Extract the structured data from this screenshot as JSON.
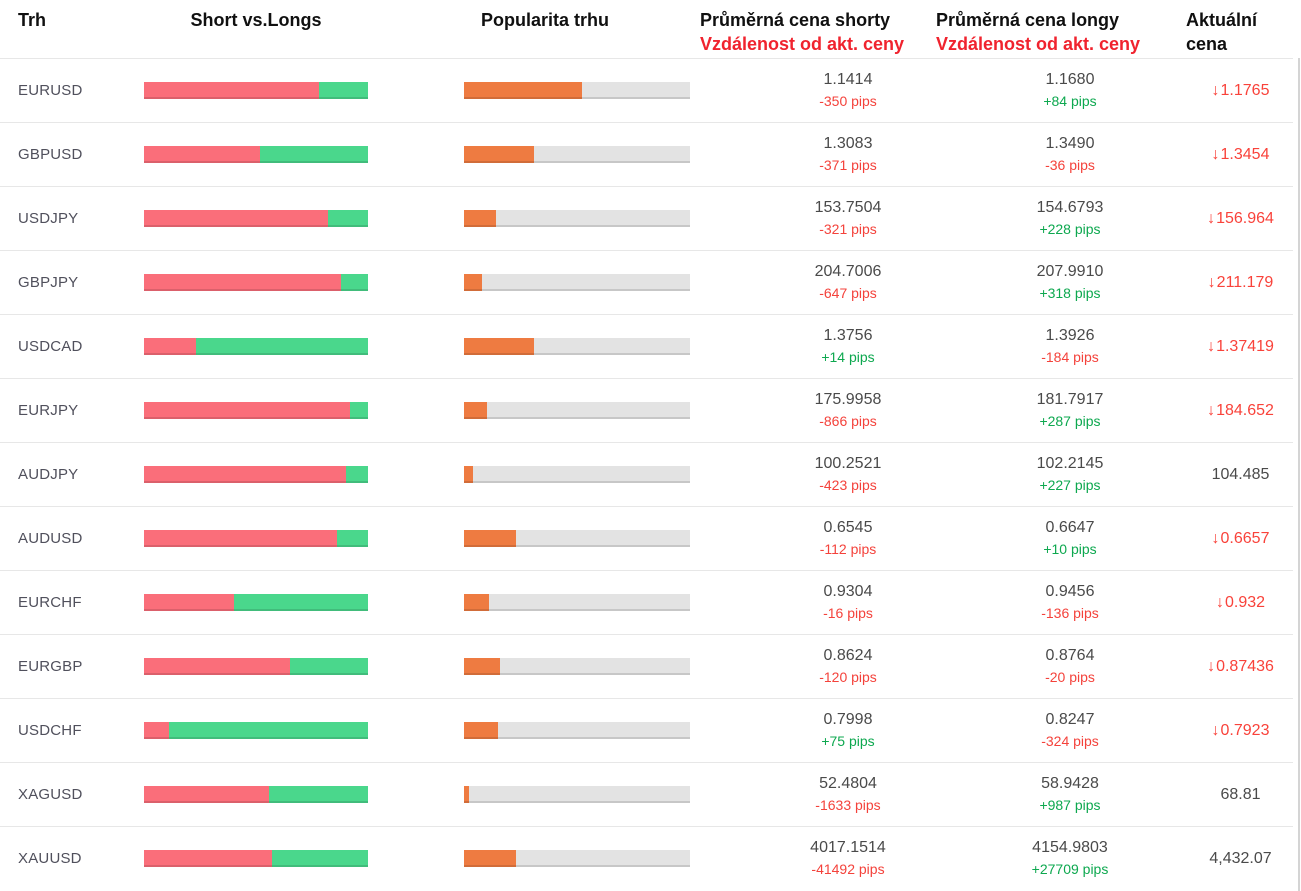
{
  "header": {
    "col_market": "Trh",
    "col_short_vs_longs": "Short vs.Longs",
    "col_popularity": "Popularita trhu",
    "col_short_line1": "Průměrná cena shorty",
    "col_short_line2": "Vzdálenost od akt. ceny",
    "col_long_line1": "Průměrná cena longy",
    "col_long_line2": "Vzdálenost od akt. ceny",
    "col_current_line1": "Aktuální",
    "col_current_line2": "cena"
  },
  "icons": {
    "down_arrow": "↓"
  },
  "colors": {
    "short_bar": "#fa6e7a",
    "long_bar": "#4ad78c",
    "popularity_bar": "#ee7b41",
    "popularity_track": "#e3e3e3",
    "pips_negative": "#f4423b",
    "pips_positive": "#0da84f",
    "header_red": "#f0232e",
    "price_down_red": "#f9423a",
    "price_neutral": "#4a4a4a"
  },
  "rows": [
    {
      "pair": "EURUSD",
      "short_pct": 78,
      "popularity_pct": 52,
      "short_price": "1.1414",
      "short_pips": "-350 pips",
      "short_tone": "neg",
      "long_price": "1.1680",
      "long_pips": "+84 pips",
      "long_tone": "pos",
      "current_price": "1.1765",
      "current_down": true
    },
    {
      "pair": "GBPUSD",
      "short_pct": 52,
      "popularity_pct": 31,
      "short_price": "1.3083",
      "short_pips": "-371 pips",
      "short_tone": "neg",
      "long_price": "1.3490",
      "long_pips": "-36 pips",
      "long_tone": "neg",
      "current_price": "1.3454",
      "current_down": true
    },
    {
      "pair": "USDJPY",
      "short_pct": 82,
      "popularity_pct": 14,
      "short_price": "153.7504",
      "short_pips": "-321 pips",
      "short_tone": "neg",
      "long_price": "154.6793",
      "long_pips": "+228 pips",
      "long_tone": "pos",
      "current_price": "156.964",
      "current_down": true
    },
    {
      "pair": "GBPJPY",
      "short_pct": 88,
      "popularity_pct": 8,
      "short_price": "204.7006",
      "short_pips": "-647 pips",
      "short_tone": "neg",
      "long_price": "207.9910",
      "long_pips": "+318 pips",
      "long_tone": "pos",
      "current_price": "211.179",
      "current_down": true
    },
    {
      "pair": "USDCAD",
      "short_pct": 23,
      "popularity_pct": 31,
      "short_price": "1.3756",
      "short_pips": "+14 pips",
      "short_tone": "pos",
      "long_price": "1.3926",
      "long_pips": "-184 pips",
      "long_tone": "neg",
      "current_price": "1.37419",
      "current_down": true
    },
    {
      "pair": "EURJPY",
      "short_pct": 92,
      "popularity_pct": 10,
      "short_price": "175.9958",
      "short_pips": "-866 pips",
      "short_tone": "neg",
      "long_price": "181.7917",
      "long_pips": "+287 pips",
      "long_tone": "pos",
      "current_price": "184.652",
      "current_down": true
    },
    {
      "pair": "AUDJPY",
      "short_pct": 90,
      "popularity_pct": 4,
      "short_price": "100.2521",
      "short_pips": "-423 pips",
      "short_tone": "neg",
      "long_price": "102.2145",
      "long_pips": "+227 pips",
      "long_tone": "pos",
      "current_price": "104.485",
      "current_down": false
    },
    {
      "pair": "AUDUSD",
      "short_pct": 86,
      "popularity_pct": 23,
      "short_price": "0.6545",
      "short_pips": "-112 pips",
      "short_tone": "neg",
      "long_price": "0.6647",
      "long_pips": "+10 pips",
      "long_tone": "pos",
      "current_price": "0.6657",
      "current_down": true
    },
    {
      "pair": "EURCHF",
      "short_pct": 40,
      "popularity_pct": 11,
      "short_price": "0.9304",
      "short_pips": "-16 pips",
      "short_tone": "neg",
      "long_price": "0.9456",
      "long_pips": "-136 pips",
      "long_tone": "neg",
      "current_price": "0.932",
      "current_down": true
    },
    {
      "pair": "EURGBP",
      "short_pct": 65,
      "popularity_pct": 16,
      "short_price": "0.8624",
      "short_pips": "-120 pips",
      "short_tone": "neg",
      "long_price": "0.8764",
      "long_pips": "-20 pips",
      "long_tone": "neg",
      "current_price": "0.87436",
      "current_down": true
    },
    {
      "pair": "USDCHF",
      "short_pct": 11,
      "popularity_pct": 15,
      "short_price": "0.7998",
      "short_pips": "+75 pips",
      "short_tone": "pos",
      "long_price": "0.8247",
      "long_pips": "-324 pips",
      "long_tone": "neg",
      "current_price": "0.7923",
      "current_down": true
    },
    {
      "pair": "XAGUSD",
      "short_pct": 56,
      "popularity_pct": 2,
      "short_price": "52.4804",
      "short_pips": "-1633 pips",
      "short_tone": "neg",
      "long_price": "58.9428",
      "long_pips": "+987 pips",
      "long_tone": "pos",
      "current_price": "68.81",
      "current_down": false
    },
    {
      "pair": "XAUUSD",
      "short_pct": 57,
      "popularity_pct": 23,
      "short_price": "4017.1514",
      "short_pips": "-41492 pips",
      "short_tone": "neg",
      "long_price": "4154.9803",
      "long_pips": "+27709 pips",
      "long_tone": "pos",
      "current_price": "4,432.07",
      "current_down": false
    }
  ]
}
